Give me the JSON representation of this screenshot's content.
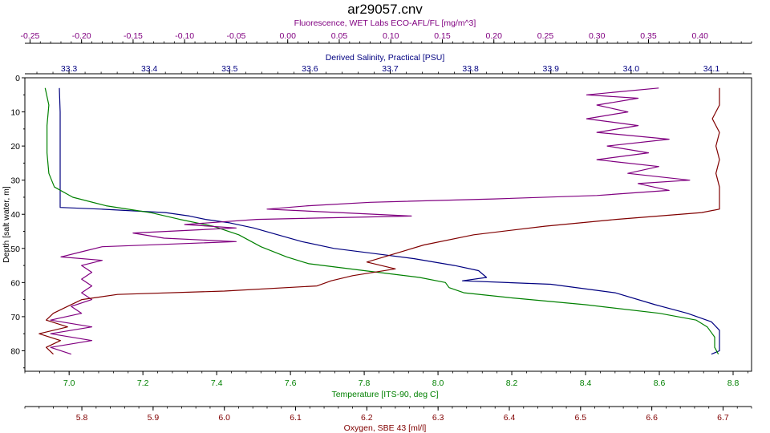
{
  "chart_data": {
    "type": "line",
    "title": "ar29057.cnv",
    "grid": false,
    "y_axis": {
      "label": "Depth [salt water, m]",
      "range": [
        0,
        86
      ],
      "ticks": [
        0,
        10,
        20,
        30,
        40,
        50,
        60,
        70,
        80
      ],
      "tick_labels": [
        "0",
        "10",
        "20",
        "30",
        "40",
        "50",
        "60",
        "70",
        "80"
      ],
      "inverted": true
    },
    "x_axes": [
      {
        "id": "fluorescence",
        "position": "top-outer",
        "label": "Fluorescence, WET Labs ECO-AFL/FL [mg/m^3]",
        "color": "#800080",
        "range": [
          -0.255,
          0.45
        ],
        "ticks": [
          -0.25,
          -0.2,
          -0.15,
          -0.1,
          -0.05,
          0,
          0.05,
          0.1,
          0.15,
          0.2,
          0.25,
          0.3,
          0.35,
          0.4
        ],
        "tick_labels": [
          "-0.25",
          "-0.20",
          "-0.15",
          "-0.10",
          "-0.05",
          "0.00",
          "0.05",
          "0.10",
          "0.15",
          "0.20",
          "0.25",
          "0.30",
          "0.35",
          "0.40"
        ]
      },
      {
        "id": "salinity",
        "position": "top-inner",
        "label": "Derived Salinity, Practical [PSU]",
        "color": "#000080",
        "range": [
          33.245,
          34.15
        ],
        "ticks": [
          33.3,
          33.4,
          33.5,
          33.6,
          33.7,
          33.8,
          33.9,
          34.0,
          34.1
        ],
        "tick_labels": [
          "33.3",
          "33.4",
          "33.5",
          "33.6",
          "33.7",
          "33.8",
          "33.9",
          "34.0",
          "34.1"
        ]
      },
      {
        "id": "temperature",
        "position": "bottom-inner",
        "label": "Temperature [ITS-90, deg C]",
        "color": "#008000",
        "range": [
          6.88,
          8.85
        ],
        "ticks": [
          7.0,
          7.2,
          7.4,
          7.6,
          7.8,
          8.0,
          8.2,
          8.4,
          8.6,
          8.8
        ],
        "tick_labels": [
          "7.0",
          "7.2",
          "7.4",
          "7.6",
          "7.8",
          "8.0",
          "8.2",
          "8.4",
          "8.6",
          "8.8"
        ]
      },
      {
        "id": "oxygen",
        "position": "bottom-outer",
        "label": "Oxygen, SBE 43 [ml/l]",
        "color": "#800000",
        "range": [
          5.72,
          6.74
        ],
        "ticks": [
          5.8,
          5.9,
          6.0,
          6.1,
          6.2,
          6.3,
          6.4,
          6.5,
          6.6,
          6.7
        ],
        "tick_labels": [
          "5.8",
          "5.9",
          "6.0",
          "6.1",
          "6.2",
          "6.3",
          "6.4",
          "6.5",
          "6.6",
          "6.7"
        ]
      }
    ],
    "series": [
      {
        "axis": "salinity",
        "color": "#000080",
        "points": [
          [
            33.288,
            3
          ],
          [
            33.289,
            10
          ],
          [
            33.289,
            20
          ],
          [
            33.289,
            30
          ],
          [
            33.289,
            38
          ],
          [
            33.34,
            38.5
          ],
          [
            33.42,
            39.5
          ],
          [
            33.45,
            40.5
          ],
          [
            33.47,
            41.5
          ],
          [
            33.5,
            42.5
          ],
          [
            33.53,
            44
          ],
          [
            33.56,
            46
          ],
          [
            33.59,
            48
          ],
          [
            33.63,
            50
          ],
          [
            33.68,
            51.5
          ],
          [
            33.73,
            53
          ],
          [
            33.78,
            55
          ],
          [
            33.81,
            56.5
          ],
          [
            33.82,
            58.5
          ],
          [
            33.79,
            59.5
          ],
          [
            33.9,
            60.5
          ],
          [
            33.98,
            63
          ],
          [
            34.03,
            66.5
          ],
          [
            34.07,
            69
          ],
          [
            34.1,
            71.5
          ],
          [
            34.11,
            74
          ],
          [
            34.11,
            77
          ],
          [
            34.11,
            80
          ],
          [
            34.1,
            81
          ]
        ]
      },
      {
        "axis": "temperature",
        "color": "#008000",
        "points": [
          [
            6.935,
            3
          ],
          [
            6.945,
            8
          ],
          [
            6.94,
            14
          ],
          [
            6.94,
            22
          ],
          [
            6.945,
            28
          ],
          [
            6.96,
            32
          ],
          [
            7.01,
            35
          ],
          [
            7.1,
            37.5
          ],
          [
            7.22,
            39.5
          ],
          [
            7.3,
            41.5
          ],
          [
            7.39,
            43.5
          ],
          [
            7.46,
            46
          ],
          [
            7.52,
            49.5
          ],
          [
            7.59,
            52.5
          ],
          [
            7.65,
            54.5
          ],
          [
            7.8,
            56.5
          ],
          [
            7.95,
            58.5
          ],
          [
            8.02,
            60
          ],
          [
            8.03,
            61.5
          ],
          [
            8.07,
            63
          ],
          [
            8.2,
            64.5
          ],
          [
            8.4,
            66.5
          ],
          [
            8.6,
            69
          ],
          [
            8.7,
            71
          ],
          [
            8.73,
            73
          ],
          [
            8.75,
            76
          ],
          [
            8.75,
            79
          ],
          [
            8.76,
            81
          ]
        ]
      },
      {
        "axis": "fluorescence",
        "color": "#800080",
        "points": [
          [
            0.36,
            3
          ],
          [
            0.29,
            5
          ],
          [
            0.34,
            6
          ],
          [
            0.3,
            8
          ],
          [
            0.33,
            10
          ],
          [
            0.29,
            12
          ],
          [
            0.34,
            14
          ],
          [
            0.3,
            16
          ],
          [
            0.37,
            18
          ],
          [
            0.31,
            20
          ],
          [
            0.35,
            22
          ],
          [
            0.3,
            24
          ],
          [
            0.36,
            26
          ],
          [
            0.33,
            28
          ],
          [
            0.39,
            30
          ],
          [
            0.34,
            31
          ],
          [
            0.37,
            33
          ],
          [
            0.3,
            34.5
          ],
          [
            0.2,
            35.5
          ],
          [
            0.08,
            36.5
          ],
          [
            0.02,
            37.5
          ],
          [
            -0.02,
            38.5
          ],
          [
            0.05,
            39.5
          ],
          [
            0.12,
            40.5
          ],
          [
            -0.03,
            41.5
          ],
          [
            -0.1,
            43
          ],
          [
            -0.05,
            44
          ],
          [
            -0.15,
            45.5
          ],
          [
            -0.12,
            47
          ],
          [
            -0.05,
            48
          ],
          [
            -0.18,
            49.5
          ],
          [
            -0.2,
            51
          ],
          [
            -0.22,
            52.5
          ],
          [
            -0.18,
            53.5
          ],
          [
            -0.2,
            55
          ],
          [
            -0.19,
            57
          ],
          [
            -0.2,
            59
          ],
          [
            -0.19,
            61
          ],
          [
            -0.2,
            63
          ],
          [
            -0.19,
            65
          ],
          [
            -0.21,
            67
          ],
          [
            -0.2,
            69
          ],
          [
            -0.23,
            71
          ],
          [
            -0.19,
            73
          ],
          [
            -0.23,
            75
          ],
          [
            -0.19,
            77
          ],
          [
            -0.23,
            79
          ],
          [
            -0.21,
            81
          ]
        ]
      },
      {
        "axis": "oxygen",
        "color": "#800000",
        "points": [
          [
            6.695,
            3
          ],
          [
            6.695,
            8
          ],
          [
            6.685,
            12
          ],
          [
            6.695,
            16
          ],
          [
            6.69,
            20
          ],
          [
            6.695,
            24
          ],
          [
            6.69,
            28
          ],
          [
            6.695,
            32
          ],
          [
            6.695,
            36
          ],
          [
            6.695,
            38.5
          ],
          [
            6.67,
            39.5
          ],
          [
            6.55,
            41.5
          ],
          [
            6.45,
            43.5
          ],
          [
            6.35,
            46
          ],
          [
            6.28,
            49
          ],
          [
            6.24,
            51.5
          ],
          [
            6.2,
            54
          ],
          [
            6.24,
            56
          ],
          [
            6.18,
            58
          ],
          [
            6.15,
            59.5
          ],
          [
            6.13,
            61
          ],
          [
            6.0,
            62.5
          ],
          [
            5.85,
            63.5
          ],
          [
            5.8,
            65
          ],
          [
            5.78,
            67
          ],
          [
            5.76,
            69
          ],
          [
            5.75,
            71
          ],
          [
            5.78,
            73
          ],
          [
            5.74,
            75
          ],
          [
            5.77,
            77
          ],
          [
            5.75,
            79
          ],
          [
            5.76,
            81
          ]
        ]
      }
    ]
  }
}
